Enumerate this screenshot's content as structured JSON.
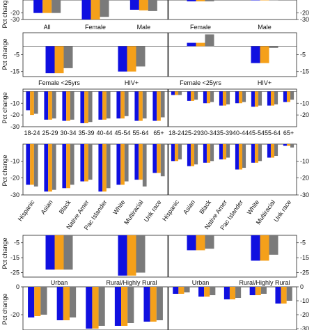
{
  "colors": {
    "series1": "#1010e0",
    "series2": "#f5a01a",
    "series3": "#7a7a7a",
    "axis": "#222222"
  },
  "y_axis_label": "Pct change",
  "chart_data": [
    {
      "type": "bar",
      "categories_left": [
        "All",
        "Female",
        "Male"
      ],
      "categories_right": [
        "Female",
        "Male"
      ],
      "left_values": [
        [
          -20,
          -20,
          -20
        ],
        [
          -30,
          -30,
          -26
        ],
        [
          -15,
          -16,
          -17
        ]
      ],
      "right_values": [
        [
          -2,
          -2,
          -2
        ],
        [
          0,
          0,
          0
        ]
      ],
      "left_ticks": [
        "-20",
        "-30"
      ],
      "right_ticks": [
        "-20",
        "-30"
      ],
      "ylim": [
        -30,
        0
      ]
    },
    {
      "type": "bar",
      "categories_left": [
        "Female <25yrs",
        "HIV+"
      ],
      "categories_right": [
        "Female <25yrs",
        "HIV+"
      ],
      "left_values": [
        [
          -16,
          -16,
          -13
        ],
        [
          -15,
          -15,
          -12
        ]
      ],
      "right_values": [
        [
          2,
          2,
          7
        ],
        [
          -10,
          -10,
          -1
        ]
      ],
      "left_ticks": [
        "-5",
        "-15"
      ],
      "right_ticks": [
        "-5",
        "-15"
      ],
      "ylim": [
        -18,
        8
      ]
    },
    {
      "type": "bar",
      "categories_left": [
        "18-24",
        "25-29",
        "30-34",
        "35-39",
        "40-44",
        "45-54",
        "55-64",
        "65+"
      ],
      "categories_right": [
        "18-24",
        "25-29",
        "30-34",
        "35-39",
        "40-44",
        "45-54",
        "55-64",
        "65+"
      ],
      "left_values": [
        [
          -16,
          -20,
          -19
        ],
        [
          -24,
          -24,
          -23
        ],
        [
          -25,
          -25,
          -24
        ],
        [
          -27,
          -27,
          -26
        ],
        [
          -24,
          -24,
          -23
        ],
        [
          -23,
          -23,
          -21
        ],
        [
          -25,
          -25,
          -23
        ],
        [
          -25,
          -25,
          -22
        ]
      ],
      "right_values": [
        [
          -3,
          -3,
          -3
        ],
        [
          -8,
          -8,
          -7
        ],
        [
          -10,
          -10,
          -9
        ],
        [
          -12,
          -12,
          -11
        ],
        [
          -10,
          -10,
          -9
        ],
        [
          -13,
          -13,
          -12
        ],
        [
          -12,
          -12,
          -11
        ],
        [
          -9,
          -9,
          -7
        ]
      ],
      "left_ticks": [
        "-10",
        "-20",
        "-30"
      ],
      "right_ticks": [
        "-10",
        "-20"
      ],
      "ylim": [
        -30,
        0
      ]
    },
    {
      "type": "bar",
      "categories_left": [
        "Hispanic",
        "Asian",
        "Black",
        "Native Amer",
        "Pac Islander",
        "White",
        "Multiracial",
        "Unk race"
      ],
      "categories_right": [
        "Hispanic",
        "Asian",
        "Black",
        "Native Amer",
        "Pac Islander",
        "White",
        "Multiracial",
        "Unk race"
      ],
      "left_values": [
        [
          -24,
          -24,
          -25
        ],
        [
          -28,
          -28,
          -27
        ],
        [
          -26,
          -26,
          -24
        ],
        [
          -22,
          -22,
          -21
        ],
        [
          -28,
          -28,
          -26
        ],
        [
          -24,
          -24,
          -22
        ],
        [
          -21,
          -21,
          -25
        ],
        [
          -17,
          -17,
          -19
        ]
      ],
      "right_values": [
        [
          -10,
          -10,
          -9
        ],
        [
          -13,
          -13,
          -12
        ],
        [
          -11,
          -11,
          -10
        ],
        [
          -9,
          -9,
          -8
        ],
        [
          -15,
          -15,
          -14
        ],
        [
          -11,
          -11,
          -10
        ],
        [
          -8,
          -8,
          -7
        ],
        [
          -1,
          -1,
          -2
        ]
      ],
      "left_ticks": [
        "-10",
        "-20",
        "-30"
      ],
      "right_ticks": [
        "-10",
        "-20",
        "-30"
      ],
      "ylim": [
        -30,
        0
      ]
    },
    {
      "type": "bar",
      "categories_left": [
        "Urban",
        "Rural/Highly Rural"
      ],
      "categories_right": [
        "Urban",
        "Rural/Highly Rural"
      ],
      "left_values": [
        [
          -23,
          -23,
          -23
        ],
        [
          -27,
          -27,
          -25
        ]
      ],
      "right_values": [
        [
          -10,
          -10,
          -9
        ],
        [
          -17,
          -17,
          -13
        ]
      ],
      "left_ticks": [
        "-5",
        "-15",
        "-25"
      ],
      "right_ticks": [
        "-5",
        "-15",
        "-25"
      ],
      "ylim": [
        -30,
        0
      ]
    },
    {
      "type": "bar",
      "categories_left": [
        "",
        "",
        "",
        "",
        ""
      ],
      "categories_right": [
        "",
        "",
        "",
        "",
        ""
      ],
      "left_values": [
        [
          -22,
          -21,
          -20
        ],
        [
          -24,
          -24,
          -22
        ],
        [
          -30,
          -30,
          -28
        ],
        [
          -28,
          -28,
          -26
        ],
        [
          -25,
          -25,
          -24
        ]
      ],
      "right_values": [
        [
          -5,
          -5,
          -4
        ],
        [
          -7,
          -7,
          -6
        ],
        [
          -9,
          -9,
          -8
        ],
        [
          -6,
          -6,
          -5
        ],
        [
          -12,
          -12,
          -10
        ]
      ],
      "left_ticks": [
        "0",
        "-20"
      ],
      "right_ticks": [
        "0",
        "-10",
        "-20",
        "-30"
      ],
      "ylim": [
        -30,
        0
      ]
    }
  ]
}
